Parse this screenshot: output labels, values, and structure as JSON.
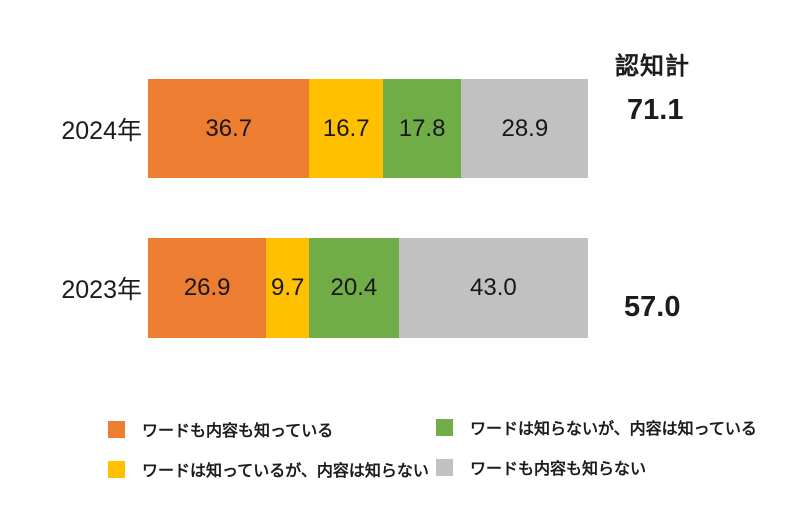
{
  "chart_data": {
    "type": "bar",
    "orientation": "horizontal-stacked",
    "categories": [
      "2024年",
      "2023年"
    ],
    "series": [
      {
        "name": "ワードも内容も知っている",
        "color": "#ED7D31",
        "values": [
          36.7,
          26.9
        ]
      },
      {
        "name": "ワードは知っているが、内容は知らない",
        "color": "#FFC000",
        "values": [
          16.7,
          9.7
        ]
      },
      {
        "name": "ワードは知らないが、内容は知っている",
        "color": "#70AD47",
        "values": [
          17.8,
          20.4
        ]
      },
      {
        "name": "ワードも内容も知らない",
        "color": "#C1C1C1",
        "values": [
          28.9,
          43.0
        ]
      }
    ],
    "totals": {
      "label": "認知計",
      "values": [
        "71.1",
        "57.0"
      ]
    },
    "xlim": [
      0,
      100
    ],
    "value_labels": "inside-center",
    "grid": false,
    "legend_position": "bottom-two-columns",
    "background_color": "#FFFFFF",
    "text_color": "#1C1C1C"
  }
}
